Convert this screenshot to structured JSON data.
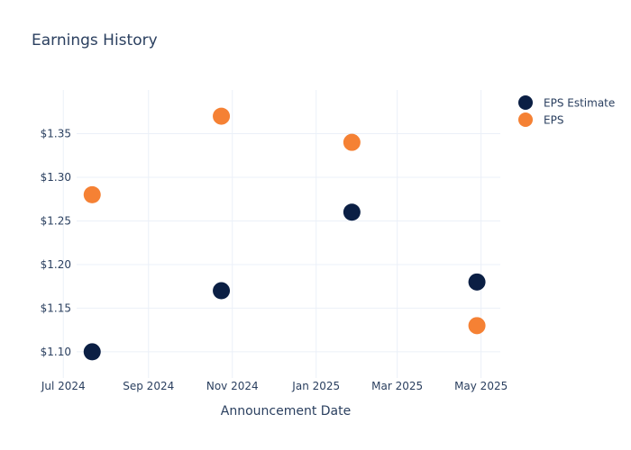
{
  "chart_data": {
    "type": "scatter",
    "title": "Earnings History",
    "xlabel": "Announcement Date",
    "ylabel": "",
    "x_ticks": [
      "Jul 2024",
      "Sep 2024",
      "Nov 2024",
      "Jan 2025",
      "Mar 2025",
      "May 2025"
    ],
    "x_tick_dates": [
      "2024-07-01",
      "2024-09-01",
      "2024-11-01",
      "2025-01-01",
      "2025-03-01",
      "2025-05-01"
    ],
    "xlim": [
      "2024-06-21",
      "2025-05-15"
    ],
    "y_ticks": [
      "$1.10",
      "$1.15",
      "$1.20",
      "$1.25",
      "$1.30",
      "$1.35"
    ],
    "y_tick_values": [
      1.1,
      1.15,
      1.2,
      1.25,
      1.3,
      1.35
    ],
    "ylim": [
      1.07,
      1.4
    ],
    "grid": true,
    "legend_position": "top-right",
    "series": [
      {
        "name": "EPS Estimate",
        "color": "#0b1f44",
        "points": [
          {
            "x": "2024-07-22",
            "y": 1.1
          },
          {
            "x": "2024-10-24",
            "y": 1.17
          },
          {
            "x": "2025-01-27",
            "y": 1.26
          },
          {
            "x": "2025-04-28",
            "y": 1.18
          }
        ]
      },
      {
        "name": "EPS",
        "color": "#f58134",
        "points": [
          {
            "x": "2024-07-22",
            "y": 1.28
          },
          {
            "x": "2024-10-24",
            "y": 1.37
          },
          {
            "x": "2025-01-27",
            "y": 1.34
          },
          {
            "x": "2025-04-28",
            "y": 1.13
          }
        ]
      }
    ]
  }
}
